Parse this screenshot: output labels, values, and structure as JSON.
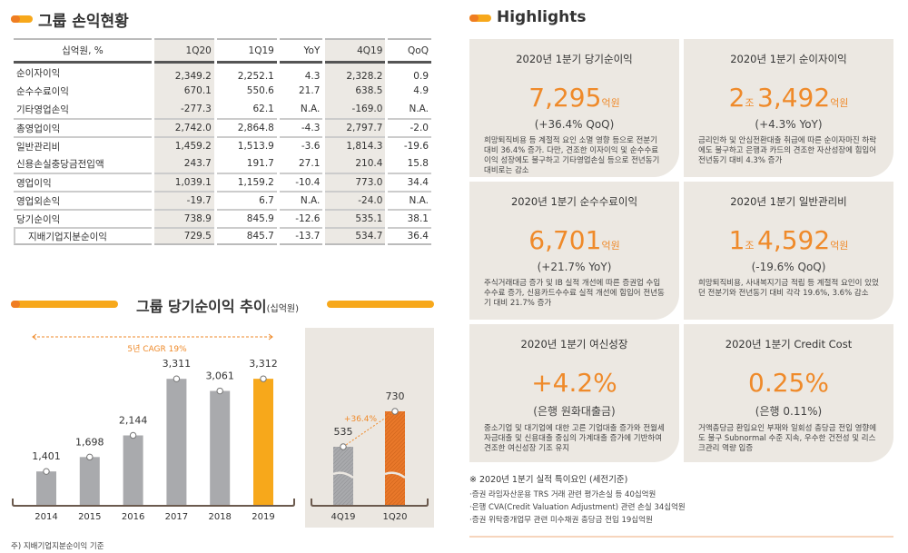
{
  "pnl": {
    "title": "그룹 손익현황",
    "headers": [
      "십억원, %",
      "1Q20",
      "1Q19",
      "YoY",
      "4Q19",
      "QoQ"
    ],
    "rows": [
      [
        "순이자이익",
        "2,349.2",
        "2,252.1",
        "4.3",
        "2,328.2",
        "0.9"
      ],
      [
        "순수수료이익",
        "670.1",
        "550.6",
        "21.7",
        "638.5",
        "4.9"
      ],
      [
        "기타영업손익",
        "-277.3",
        "62.1",
        "N.A.",
        "-169.0",
        "N.A."
      ],
      [
        "총영업이익",
        "2,742.0",
        "2,864.8",
        "-4.3",
        "2,797.7",
        "-2.0"
      ],
      [
        "일반관리비",
        "1,459.2",
        "1,513.9",
        "-3.6",
        "1,814.3",
        "-19.6"
      ],
      [
        "신용손실충당금전입액",
        "243.7",
        "191.7",
        "27.1",
        "210.4",
        "15.8"
      ],
      [
        "영업이익",
        "1,039.1",
        "1,159.2",
        "-10.4",
        "773.0",
        "34.4"
      ],
      [
        "영업외손익",
        "-19.7",
        "6.7",
        "N.A.",
        "-24.0",
        "N.A."
      ],
      [
        "당기순이익",
        "738.9",
        "845.9",
        "-12.6",
        "535.1",
        "38.1"
      ],
      [
        "지배기업지분순이익",
        "729.5",
        "845.7",
        "-13.7",
        "534.7",
        "36.4"
      ]
    ]
  },
  "trend": {
    "title": "그룹 당기순이익 추이",
    "unit": "(십억원)",
    "cagr": "5년 CAGR 19%",
    "growth": "+36.4%",
    "footnote": "주) 지배기업지분순이익 기준"
  },
  "chart_data": [
    {
      "type": "bar",
      "categories": [
        "2014",
        "2015",
        "2016",
        "2017",
        "2018",
        "2019"
      ],
      "values": [
        1401,
        1698,
        2144,
        3311,
        3061,
        3312
      ],
      "labels": [
        "1,401",
        "1,698",
        "2,144",
        "3,311",
        "3,061",
        "3,312"
      ],
      "colors": [
        "#a9aaad",
        "#a9aaad",
        "#a9aaad",
        "#a9aaad",
        "#a9aaad",
        "#f7a81b"
      ]
    },
    {
      "type": "bar",
      "categories": [
        "4Q19",
        "1Q20"
      ],
      "values": [
        535,
        730
      ],
      "labels": [
        "535",
        "730"
      ],
      "colors": [
        "#a9aaad",
        "#e9782a"
      ]
    }
  ],
  "highlights": {
    "title": "Highlights",
    "cards": [
      {
        "title": "2020년 1분기 당기순이익",
        "pre": "",
        "preunit": "",
        "value": "7,295",
        "unit": "억원",
        "sub": "(+36.4% QoQ)",
        "desc": "희망퇴직비용 등 계절적 요인 소멸 영향 등으로 전분기 대비 36.4% 증가. 다만, 견조한 이자이익 및 순수수료이익 성장에도 불구하고 기타영업손실 등으로 전년동기 대비로는 감소"
      },
      {
        "title": "2020년 1분기 순이자이익",
        "pre": "2",
        "preunit": "조 ",
        "value": "3,492",
        "unit": "억원",
        "sub": "(+4.3% YoY)",
        "desc": "금리인하 및 안심전환대출 취급에 따른 순이자마진 하락에도 불구하고 은행과 카드의 견조한 자산성장에 힘입어 전년동기 대비 4.3% 증가"
      },
      {
        "title": "2020년 1분기 순수수료이익",
        "pre": "",
        "preunit": "",
        "value": "6,701",
        "unit": "억원",
        "sub": "(+21.7% YoY)",
        "desc": "주식거래대금 증가 및 IB 실적 개선에 따른 증권업 수입수수료 증가, 신용카드수수료 실적 개선에 힘입어 전년동기 대비 21.7% 증가"
      },
      {
        "title": "2020년 1분기 일반관리비",
        "pre": "1",
        "preunit": "조 ",
        "value": "4,592",
        "unit": "억원",
        "sub": "(-19.6% QoQ)",
        "desc": "희망퇴직비용, 사내복지기금 적립 등 계절적 요인이 있었던 전분기와 전년동기 대비 각각 19.6%, 3.6% 감소"
      },
      {
        "title": "2020년 1분기 여신성장",
        "pre": "",
        "preunit": "",
        "value": "+4.2%",
        "unit": "",
        "sub": "(은행 원화대출금)",
        "desc": "중소기업 및 대기업에 대한 고른 기업대출 증가와 전월세자금대출 및 신용대출 중심의 가계대출 증가에 기반하여 견조한 여신성장 기조 유지"
      },
      {
        "title": "2020년 1분기 Credit Cost",
        "pre": "",
        "preunit": "",
        "value": "0.25%",
        "unit": "",
        "sub": "(은행 0.11%)",
        "desc": "거액충당금 환입요인 부재와 일회성 충당금 전입 영향에도 불구 Subnormal 수준 지속, 우수한 건전성 및 리스크관리 역량 입증"
      }
    ],
    "note_title": "※ 2020년 1분기 실적 특이요인 (세전기준)",
    "notes": [
      "·증권 라임자산운용 TRS 거래 관련 평가손실 등 40십억원",
      "·은행 CVA(Credit Valuation Adjustment) 관련 손실 34십억원",
      "·증권 위탁중개업무 관련 미수채권 충당금 전입 19십억원"
    ]
  },
  "colors": {
    "accent": "#ef8a2a",
    "bar": "#a9aaad",
    "bar_highlight": "#f7a81b",
    "card_bg": "#ece8e2"
  }
}
